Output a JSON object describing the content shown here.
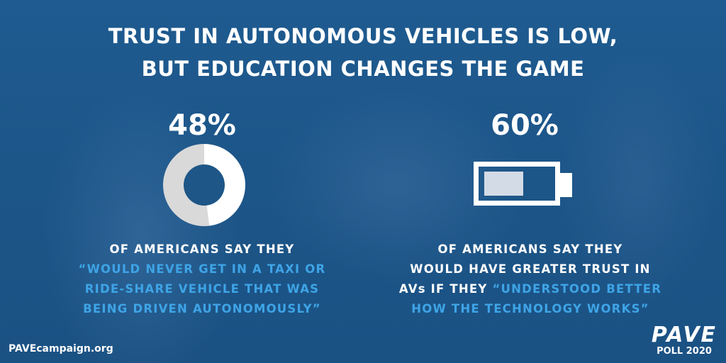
{
  "title": {
    "line1": "TRUST IN AUTONOMOUS VEHICLES IS LOW,",
    "line2": "BUT EDUCATION CHANGES THE GAME"
  },
  "left_stat": {
    "value": "48%",
    "fraction": 0.48,
    "icon": "donut-chart-icon",
    "colors": {
      "filled": "#ffffff",
      "rest": "#d9d9d9"
    },
    "caption": {
      "line1": "OF AMERICANS SAY THEY",
      "line2": "“WOULD NEVER GET IN A TAXI OR",
      "line3": "RIDE-SHARE VEHICLE THAT WAS",
      "line4": "BEING DRIVEN AUTONOMOUSLY”"
    }
  },
  "right_stat": {
    "value": "60%",
    "fraction": 0.6,
    "icon": "battery-icon",
    "caption": {
      "line1": "OF AMERICANS SAY THEY",
      "line2": "WOULD HAVE GREATER TRUST IN",
      "line3a": "AVs IF THEY ",
      "line3b": "“UNDERSTOOD BETTER",
      "line4": "HOW THE TECHNOLOGY WORKS”"
    }
  },
  "colors": {
    "background": "#1d5687",
    "highlight": "#3ea4e6",
    "text": "#ffffff"
  },
  "footer": {
    "website": "PAVEcampaign.org",
    "logo": "PAVE",
    "logo_sub": "POLL 2020"
  }
}
